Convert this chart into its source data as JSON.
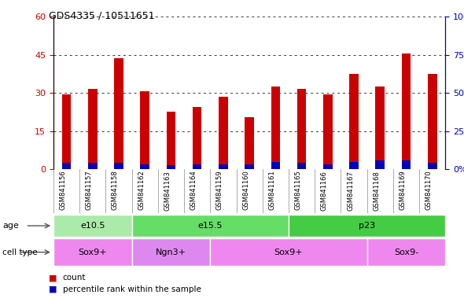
{
  "title": "GDS4335 / 10511651",
  "samples": [
    "GSM841156",
    "GSM841157",
    "GSM841158",
    "GSM841162",
    "GSM841163",
    "GSM841164",
    "GSM841159",
    "GSM841160",
    "GSM841161",
    "GSM841165",
    "GSM841166",
    "GSM841167",
    "GSM841168",
    "GSM841169",
    "GSM841170"
  ],
  "count_values": [
    29.5,
    31.5,
    43.5,
    30.5,
    22.5,
    24.5,
    28.5,
    20.5,
    32.5,
    31.5,
    29.5,
    37.5,
    32.5,
    45.5,
    37.5
  ],
  "percentile_values": [
    2.5,
    2.5,
    2.5,
    1.8,
    1.5,
    2.0,
    2.0,
    2.0,
    2.8,
    2.5,
    2.0,
    2.8,
    3.5,
    3.5,
    2.5
  ],
  "ylim_left": [
    0,
    60
  ],
  "ylim_right": [
    0,
    100
  ],
  "yticks_left": [
    0,
    15,
    30,
    45,
    60
  ],
  "yticks_right": [
    0,
    25,
    50,
    75,
    100
  ],
  "ytick_labels_left": [
    "0",
    "15",
    "30",
    "45",
    "60"
  ],
  "ytick_labels_right": [
    "0%",
    "25%",
    "50%",
    "75%",
    "100%"
  ],
  "bar_color_count": "#cc0000",
  "bar_color_pct": "#0000bb",
  "bar_width": 0.35,
  "age_groups": [
    {
      "label": "e10.5",
      "start": 0,
      "end": 3,
      "color": "#aaeaaa"
    },
    {
      "label": "e15.5",
      "start": 3,
      "end": 9,
      "color": "#66dd66"
    },
    {
      "label": "p23",
      "start": 9,
      "end": 15,
      "color": "#44cc44"
    }
  ],
  "cell_groups": [
    {
      "label": "Sox9+",
      "start": 0,
      "end": 3,
      "color": "#ee88ee"
    },
    {
      "label": "Ngn3+",
      "start": 3,
      "end": 6,
      "color": "#dd88ee"
    },
    {
      "label": "Sox9+",
      "start": 6,
      "end": 12,
      "color": "#ee88ee"
    },
    {
      "label": "Sox9-",
      "start": 12,
      "end": 15,
      "color": "#ee88ee"
    }
  ],
  "legend_count_color": "#cc0000",
  "legend_pct_color": "#0000bb",
  "bg_color": "#ffffff",
  "grid_color": "#333333",
  "tick_label_color_left": "#cc0000",
  "tick_label_color_right": "#0000bb",
  "xlabels_bg_color": "#cccccc",
  "xlabels_divider_color": "#888888"
}
